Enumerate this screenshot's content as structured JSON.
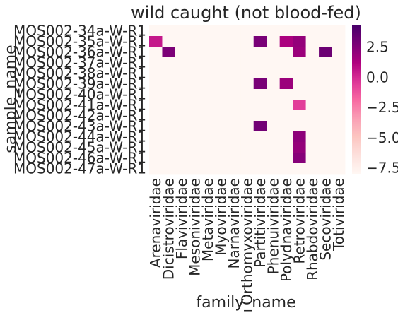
{
  "chart_data": {
    "type": "heatmap",
    "title": "wild caught (not blood-fed)",
    "xlabel": "family_name",
    "ylabel": "sample_name",
    "x_categories": [
      "Arenaviridae",
      "Dicistroviridae",
      "Flaviviridae",
      "Mesoniviridae",
      "Metaviridae",
      "Myoviridae",
      "Narnaviridae",
      "Orthomyxoviridae",
      "Partitiviridae",
      "Phenuiviridae",
      "Polydnaviridae",
      "Retroviridae",
      "Rhabdoviridae",
      "Secoviridae",
      "Totiviridae"
    ],
    "y_categories": [
      "MOS002-34a-W-R1",
      "MOS002-35a-W-R1",
      "MOS002-36a-W-R1",
      "MOS002-37a-W-R1",
      "MOS002-38a-W-R1",
      "MOS002-39a-W-R1",
      "MOS002-40a-W-R1",
      "MOS002-41a-W-R1",
      "MOS002-42a-W-R1",
      "MOS002-43a-W-R1",
      "MOS002-44a-W-R1",
      "MOS002-45a-W-R1",
      "MOS002-46a-W-R1",
      "MOS002-47a-W-R1"
    ],
    "colormap": "RdPu",
    "vmin": -8.0,
    "vmax": 4.3,
    "colorbar_ticks": [
      2.5,
      0.0,
      -2.5,
      -5.0,
      -7.5
    ],
    "colorbar_tick_labels": [
      "2.5",
      "0.0",
      "−2.5",
      "−5.0",
      "−7.5"
    ],
    "background_value": -8.0,
    "cells": [
      {
        "row": 1,
        "col": 0,
        "value": 0.5
      },
      {
        "row": 1,
        "col": 8,
        "value": 2.8
      },
      {
        "row": 1,
        "col": 10,
        "value": 1.3
      },
      {
        "row": 1,
        "col": 11,
        "value": 2.0
      },
      {
        "row": 2,
        "col": 1,
        "value": 2.7
      },
      {
        "row": 2,
        "col": 11,
        "value": 1.8
      },
      {
        "row": 2,
        "col": 13,
        "value": 3.2
      },
      {
        "row": 5,
        "col": 8,
        "value": 2.8
      },
      {
        "row": 5,
        "col": 10,
        "value": 1.8
      },
      {
        "row": 7,
        "col": 11,
        "value": -0.6
      },
      {
        "row": 9,
        "col": 8,
        "value": 3.0
      },
      {
        "row": 10,
        "col": 11,
        "value": 2.2
      },
      {
        "row": 11,
        "col": 11,
        "value": 2.0
      },
      {
        "row": 12,
        "col": 11,
        "value": 2.4
      }
    ]
  }
}
